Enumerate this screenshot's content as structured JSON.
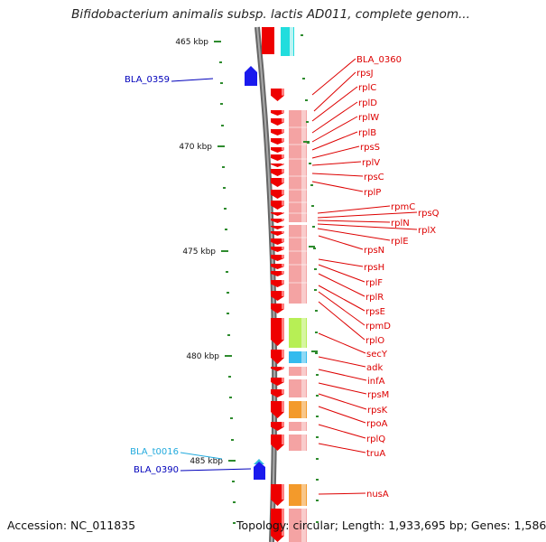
{
  "title": "Bifidobacterium animalis subsp. lactis AD011, complete genom...",
  "scale": {
    "unit": "kbp",
    "labels": [
      "465 kbp",
      "470 kbp",
      "475 kbp",
      "480 kbp",
      "485 kbp"
    ]
  },
  "colors": {
    "backbone": "#8a8a8a",
    "gene_forward": "#ee0000",
    "gene_reverse": "#1a1aee",
    "trna": "#33bbdd",
    "track_pink": "#f2a0a0",
    "tick": "#2e8b2e",
    "label_red": "#dd0000",
    "label_blue": "#0000bb",
    "label_cyan": "#22aadd"
  },
  "left_labels": [
    {
      "name": "BLA_0359",
      "color": "blue"
    },
    {
      "name": "BLA_t0016",
      "color": "cyan"
    },
    {
      "name": "BLA_0390",
      "color": "blue"
    }
  ],
  "right_labels": [
    "BLA_0360",
    "rpsJ",
    "rplC",
    "rplD",
    "rplW",
    "rplB",
    "rpsS",
    "rplV",
    "rpsC",
    "rplP",
    "rpmC",
    "rpsQ",
    "rplN",
    "rplX",
    "rplE",
    "rpsN",
    "rpsH",
    "rplF",
    "rplR",
    "rpsE",
    "rpmD",
    "rplO",
    "secY",
    "adk",
    "infA",
    "rpsM",
    "rpsK",
    "rpoA",
    "rplQ",
    "truA",
    "nusA"
  ],
  "footer": {
    "accession": "Accession: NC_011835",
    "topology": "Topology: circular; Length: 1,933,695 bp; Genes: 1,586"
  }
}
